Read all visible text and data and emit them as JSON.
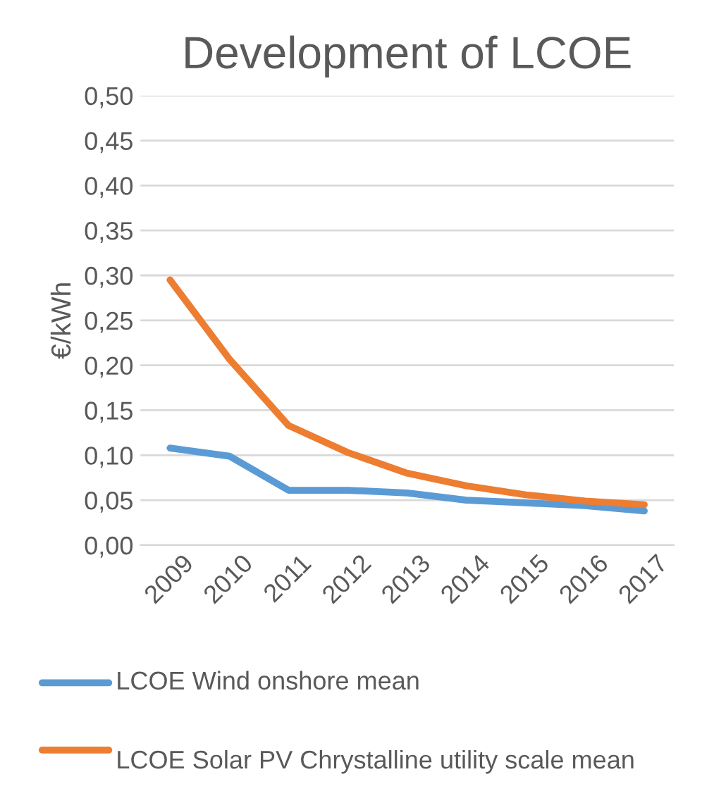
{
  "chart_data": {
    "type": "line",
    "title": "Development of LCOE",
    "ylabel": "€/kWh",
    "categories": [
      "2009",
      "2010",
      "2011",
      "2012",
      "2013",
      "2014",
      "2015",
      "2016",
      "2017"
    ],
    "series": [
      {
        "name": "LCOE Wind onshore mean",
        "color": "#5b9bd5",
        "values": [
          0.108,
          0.099,
          0.061,
          0.061,
          0.058,
          0.05,
          0.047,
          0.044,
          0.038
        ]
      },
      {
        "name": "LCOE Solar PV Chrystalline utility scale mean",
        "color": "#ed7d31",
        "values": [
          0.295,
          0.207,
          0.133,
          0.103,
          0.08,
          0.066,
          0.056,
          0.049,
          0.045
        ]
      }
    ],
    "ylim": [
      0,
      0.5
    ],
    "yticks": [
      {
        "value": 0,
        "label": "0,00"
      },
      {
        "value": 0.05,
        "label": "0,05"
      },
      {
        "value": 0.1,
        "label": "0,10"
      },
      {
        "value": 0.15,
        "label": "0,15"
      },
      {
        "value": 0.2,
        "label": "0,20"
      },
      {
        "value": 0.25,
        "label": "0,25"
      },
      {
        "value": 0.3,
        "label": "0,30"
      },
      {
        "value": 0.35,
        "label": "0,35"
      },
      {
        "value": 0.4,
        "label": "0,40"
      },
      {
        "value": 0.45,
        "label": "0,45"
      },
      {
        "value": 0.5,
        "label": "0,50"
      }
    ],
    "grid": "y",
    "legend": "bottom",
    "marker": "none",
    "line_style": "solid"
  }
}
